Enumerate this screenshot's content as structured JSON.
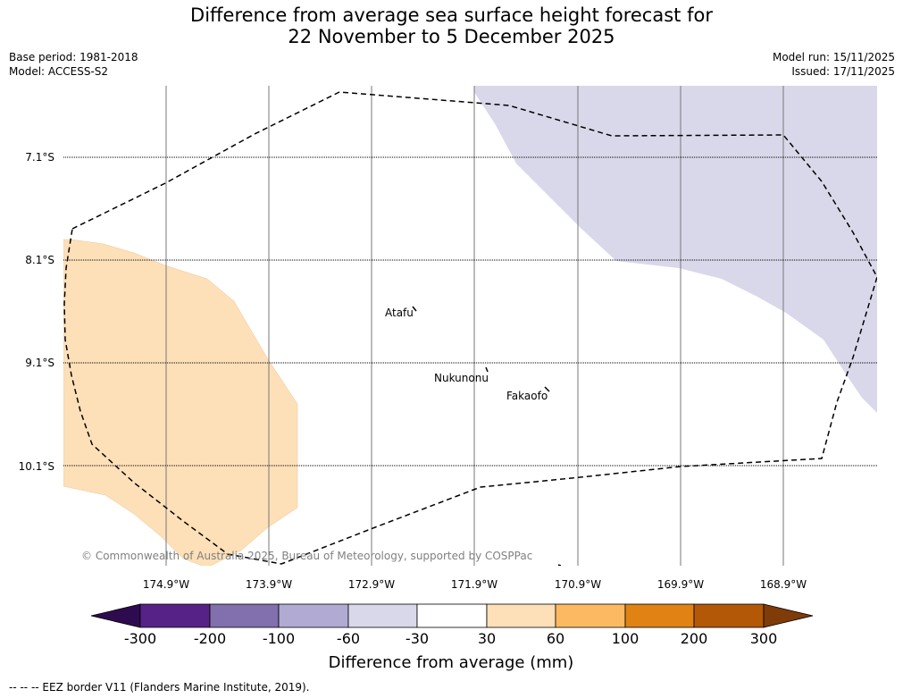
{
  "title": {
    "line1": "Difference from average sea surface height forecast for",
    "line2": "22 November to 5 December 2025"
  },
  "meta": {
    "base_period": "Base period: 1981-2018",
    "model": "Model: ACCESS-S2",
    "model_run": "Model run: 15/11/2025",
    "issued": "Issued: 17/11/2025"
  },
  "map": {
    "longitude_labels": [
      "174.9°W",
      "173.9°W",
      "172.9°W",
      "171.9°W",
      "170.9°W",
      "169.9°W",
      "168.9°W"
    ],
    "latitude_labels": [
      "7.1°S",
      "8.1°S",
      "9.1°S",
      "10.1°S"
    ],
    "places": [
      {
        "name": "Atafu"
      },
      {
        "name": "Nukunonu"
      },
      {
        "name": "Fakaofo"
      }
    ],
    "copyright": "© Commonwealth of Australia 2025, Bureau of Meteorology, supported by COSPPac",
    "colors": {
      "positive_anomaly": "#fde0b8",
      "negative_anomaly": "#d8d8ea",
      "eez_line": "#000000",
      "grid_line": "#000000"
    }
  },
  "colorbar": {
    "title": "Difference from average (mm)",
    "tick_labels": [
      "-300",
      "-200",
      "-100",
      "-60",
      "-30",
      "30",
      "60",
      "100",
      "200",
      "300"
    ],
    "colors": [
      "#2e0b4f",
      "#562287",
      "#8170ad",
      "#b1aad3",
      "#d8d8ea",
      "#ffffff",
      "#fde0b8",
      "#fcb962",
      "#e08214",
      "#b35807",
      "#7f3b08"
    ]
  },
  "footer": {
    "legend": "--  --  -- EEZ border V11 (Flanders Marine Institute, 2019)."
  }
}
